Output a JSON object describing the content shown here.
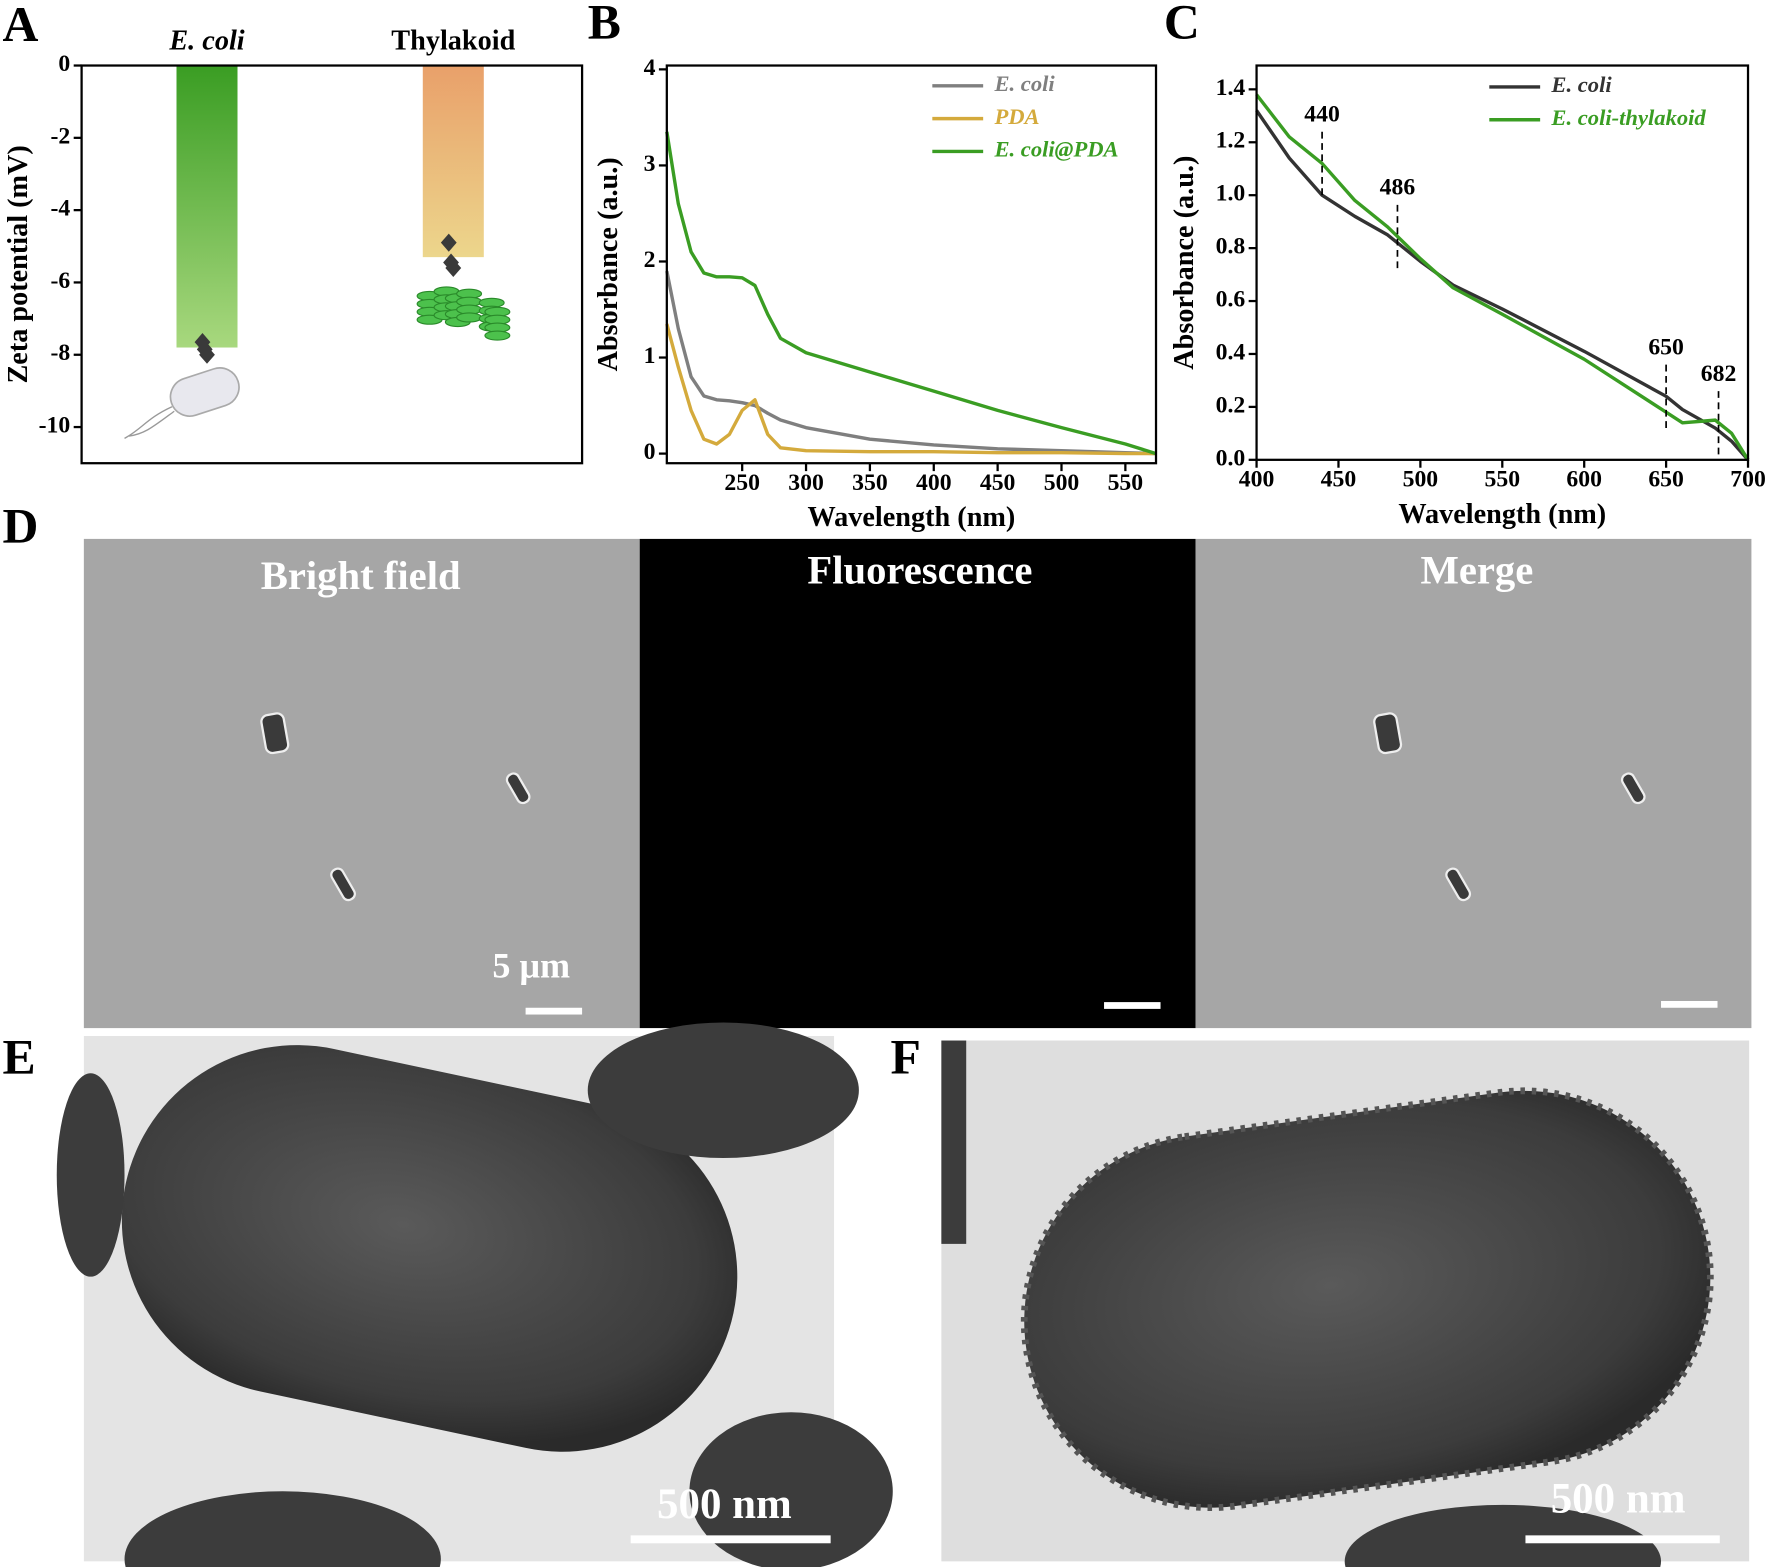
{
  "chart_data": [
    {
      "type": "bar",
      "panel": "A",
      "ylabel": "Zeta potential (mV)",
      "categories": [
        "E. coli",
        "Thylakoid"
      ],
      "values": [
        -7.8,
        -5.3
      ],
      "points": [
        [
          -7.65,
          -7.85,
          -8.0
        ],
        [
          -4.9,
          -5.45,
          -5.6
        ]
      ],
      "colors": [
        [
          "#3a9d23",
          "#a8d87e"
        ],
        [
          "#e9a06a",
          "#ecd68c"
        ]
      ],
      "ylim": [
        -11,
        0
      ],
      "yticks": [
        0,
        -2,
        -4,
        -6,
        -8,
        -10
      ]
    },
    {
      "type": "line",
      "panel": "B",
      "xlabel": "Wavelength (nm)",
      "ylabel": "Absorbance (a.u.)",
      "x": [
        191,
        200,
        210,
        220,
        230,
        240,
        250,
        260,
        270,
        280,
        300,
        350,
        400,
        450,
        500,
        550,
        574
      ],
      "series": [
        {
          "name": "E. coli",
          "color": "#7f7f7f",
          "values": [
            1.9,
            1.3,
            0.8,
            0.6,
            0.56,
            0.55,
            0.53,
            0.5,
            0.42,
            0.35,
            0.27,
            0.15,
            0.09,
            0.05,
            0.03,
            0.01,
            0.0
          ]
        },
        {
          "name": "PDA",
          "color": "#d4aa3c",
          "values": [
            1.35,
            0.9,
            0.45,
            0.15,
            0.1,
            0.2,
            0.45,
            0.56,
            0.2,
            0.06,
            0.03,
            0.02,
            0.02,
            0.01,
            0.01,
            0.0,
            0.0
          ]
        },
        {
          "name": "E. coli@PDA",
          "color": "#3a9d23",
          "values": [
            3.35,
            2.6,
            2.1,
            1.88,
            1.84,
            1.84,
            1.83,
            1.75,
            1.45,
            1.2,
            1.05,
            0.85,
            0.65,
            0.45,
            0.27,
            0.1,
            0.0
          ]
        }
      ],
      "xlim": [
        191,
        574
      ],
      "ylim": [
        -0.1,
        4.04
      ],
      "xticks": [
        250,
        300,
        350,
        400,
        450,
        500,
        550
      ],
      "yticks": [
        0,
        1,
        2,
        3,
        4
      ]
    },
    {
      "type": "line",
      "panel": "C",
      "xlabel": "Wavelength (nm)",
      "ylabel": "Absorbance (a.u.)",
      "x": [
        400,
        420,
        440,
        460,
        480,
        500,
        520,
        550,
        600,
        650,
        660,
        680,
        690,
        700
      ],
      "series": [
        {
          "name": "E. coli",
          "color": "#333333",
          "values": [
            1.32,
            1.14,
            1.0,
            0.92,
            0.85,
            0.75,
            0.66,
            0.57,
            0.41,
            0.24,
            0.19,
            0.12,
            0.07,
            0.0
          ]
        },
        {
          "name": "E. coli-thylakoid",
          "color": "#3a9d23",
          "values": [
            1.38,
            1.22,
            1.12,
            0.98,
            0.88,
            0.76,
            0.65,
            0.55,
            0.38,
            0.18,
            0.14,
            0.15,
            0.1,
            0.0
          ]
        }
      ],
      "annotations": [
        440,
        486,
        650,
        682
      ],
      "xlim": [
        400,
        700
      ],
      "ylim": [
        0,
        1.49
      ],
      "xticks": [
        400,
        450,
        500,
        550,
        600,
        650,
        700
      ],
      "yticks": [
        {
          "value": 0,
          "label": "0.0"
        },
        0.2,
        0.4,
        0.6,
        0.8,
        {
          "value": 1,
          "label": "1.0"
        },
        1.2,
        1.4
      ]
    }
  ],
  "images": [
    {
      "panel": "D",
      "captions": [
        "Bright field",
        "Fluorescence",
        "Merge"
      ],
      "scale_bar": "5 μm"
    },
    {
      "panel": "E",
      "scale_bar": "500 nm"
    },
    {
      "panel": "F",
      "scale_bar": "500 nm"
    }
  ]
}
